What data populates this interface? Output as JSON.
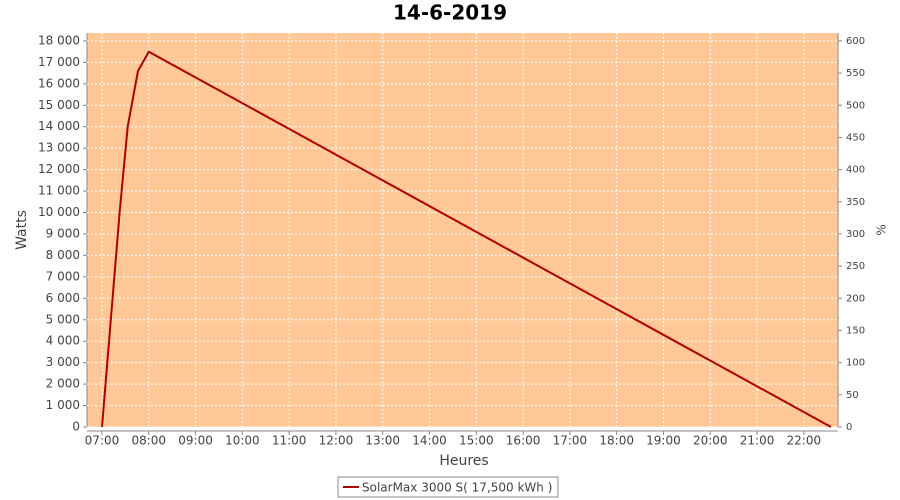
{
  "chart_data": {
    "type": "line",
    "title": "14-6-2019",
    "x_label": "Heures",
    "y_label": "Watts",
    "y2_label": "%",
    "x": [
      7.0,
      7.38,
      7.55,
      7.77,
      8.0,
      22.58
    ],
    "series": [
      {
        "name": "SolarMax 3000 S( 17,500 kWh )",
        "color": "#b00000",
        "values": [
          0,
          10100,
          14000,
          16600,
          17500,
          0
        ]
      }
    ],
    "xlim": [
      6.68,
      22.73
    ],
    "xticks": [
      {
        "value": 7,
        "label": "07:00"
      },
      {
        "value": 8,
        "label": "08:00"
      },
      {
        "value": 9,
        "label": "09:00"
      },
      {
        "value": 10,
        "label": "10:00"
      },
      {
        "value": 11,
        "label": "11:00"
      },
      {
        "value": 12,
        "label": "12:00"
      },
      {
        "value": 13,
        "label": "13:00"
      },
      {
        "value": 14,
        "label": "14:00"
      },
      {
        "value": 15,
        "label": "15:00"
      },
      {
        "value": 16,
        "label": "16:00"
      },
      {
        "value": 17,
        "label": "17:00"
      },
      {
        "value": 18,
        "label": "18:00"
      },
      {
        "value": 19,
        "label": "19:00"
      },
      {
        "value": 20,
        "label": "20:00"
      },
      {
        "value": 21,
        "label": "21:00"
      },
      {
        "value": 22,
        "label": "22:00"
      }
    ],
    "ylim": [
      0,
      18370
    ],
    "yticks": [
      0,
      {
        "value": 1000,
        "label": "1 000"
      },
      {
        "value": 2000,
        "label": "2 000"
      },
      {
        "value": 3000,
        "label": "3 000"
      },
      {
        "value": 4000,
        "label": "4 000"
      },
      {
        "value": 5000,
        "label": "5 000"
      },
      {
        "value": 6000,
        "label": "6 000"
      },
      {
        "value": 7000,
        "label": "7 000"
      },
      {
        "value": 8000,
        "label": "8 000"
      },
      {
        "value": 9000,
        "label": "9 000"
      },
      {
        "value": 10000,
        "label": "10 000"
      },
      {
        "value": 11000,
        "label": "11 000"
      },
      {
        "value": 12000,
        "label": "12 000"
      },
      {
        "value": 13000,
        "label": "13 000"
      },
      {
        "value": 14000,
        "label": "14 000"
      },
      {
        "value": 15000,
        "label": "15 000"
      },
      {
        "value": 16000,
        "label": "16 000"
      },
      {
        "value": 17000,
        "label": "17 000"
      },
      {
        "value": 18000,
        "label": "18 000"
      }
    ],
    "y2lim": [
      0,
      612.3
    ],
    "y2ticks": [
      0,
      50,
      100,
      150,
      200,
      250,
      300,
      350,
      400,
      450,
      500,
      550,
      600
    ],
    "grid": true,
    "background": "#ffc896"
  }
}
